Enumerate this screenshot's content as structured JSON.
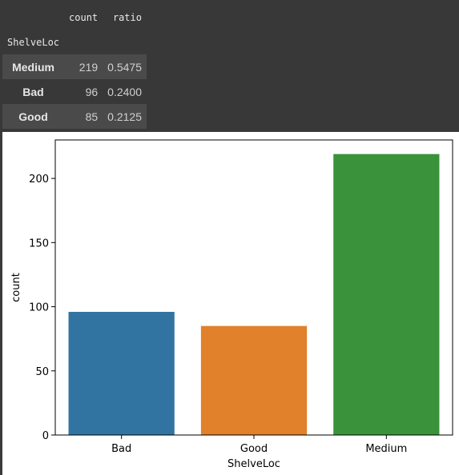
{
  "table": {
    "columns": [
      "count",
      "ratio"
    ],
    "index_name": "ShelveLoc",
    "rows": [
      {
        "label": "Medium",
        "count": "219",
        "ratio": "0.5475"
      },
      {
        "label": "Bad",
        "count": "96",
        "ratio": "0.2400"
      },
      {
        "label": "Good",
        "count": "85",
        "ratio": "0.2125"
      }
    ]
  },
  "chart_data": {
    "type": "bar",
    "categories": [
      "Bad",
      "Good",
      "Medium"
    ],
    "values": [
      96,
      85,
      219
    ],
    "colors": [
      "#3274a1",
      "#e1812c",
      "#3a923a"
    ],
    "xlabel": "ShelveLoc",
    "ylabel": "count",
    "ylim": [
      0,
      230
    ],
    "yticks": [
      0,
      50,
      100,
      150,
      200
    ],
    "grid": false
  }
}
